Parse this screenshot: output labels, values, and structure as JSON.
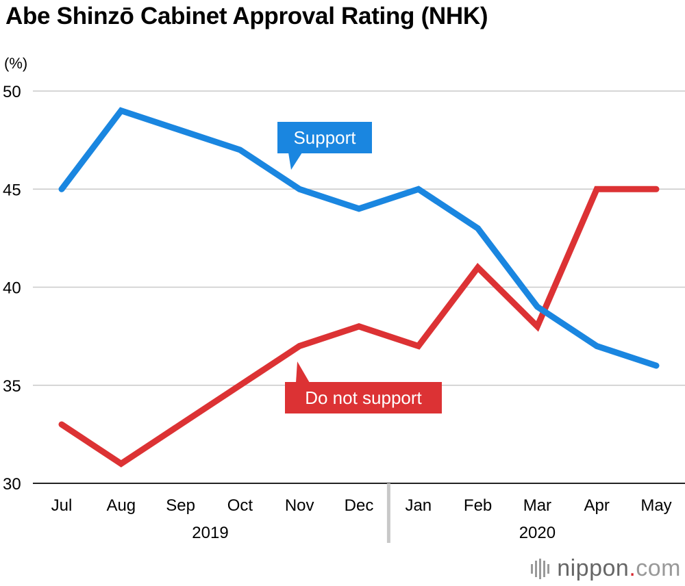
{
  "title": "Abe Shinzō Cabinet Approval Rating (NHK)",
  "chart_data": {
    "type": "line",
    "title": "Abe Shinzō Cabinet Approval Rating (NHK)",
    "ylabel": "(%)",
    "xlabel": "",
    "ylim": [
      30,
      50
    ],
    "yticks": [
      30,
      35,
      40,
      45,
      50
    ],
    "categories": [
      "Jul",
      "Aug",
      "Sep",
      "Oct",
      "Nov",
      "Dec",
      "Jan",
      "Feb",
      "Mar",
      "Apr",
      "May"
    ],
    "year_groups": [
      {
        "label": "2019",
        "from": 0,
        "to": 5
      },
      {
        "label": "2020",
        "from": 6,
        "to": 10
      }
    ],
    "grid": true,
    "series": [
      {
        "name": "Support",
        "color": "#1a86e0",
        "values": [
          45,
          49,
          48,
          47,
          45,
          44,
          45,
          43,
          39,
          37,
          36
        ]
      },
      {
        "name": "Do not support",
        "color": "#dc3234",
        "values": [
          33,
          31,
          33,
          35,
          37,
          38,
          37,
          41,
          38,
          45,
          45
        ]
      }
    ]
  },
  "logo": {
    "brand": "nippon",
    "dot": ".",
    "suffix": "com"
  }
}
